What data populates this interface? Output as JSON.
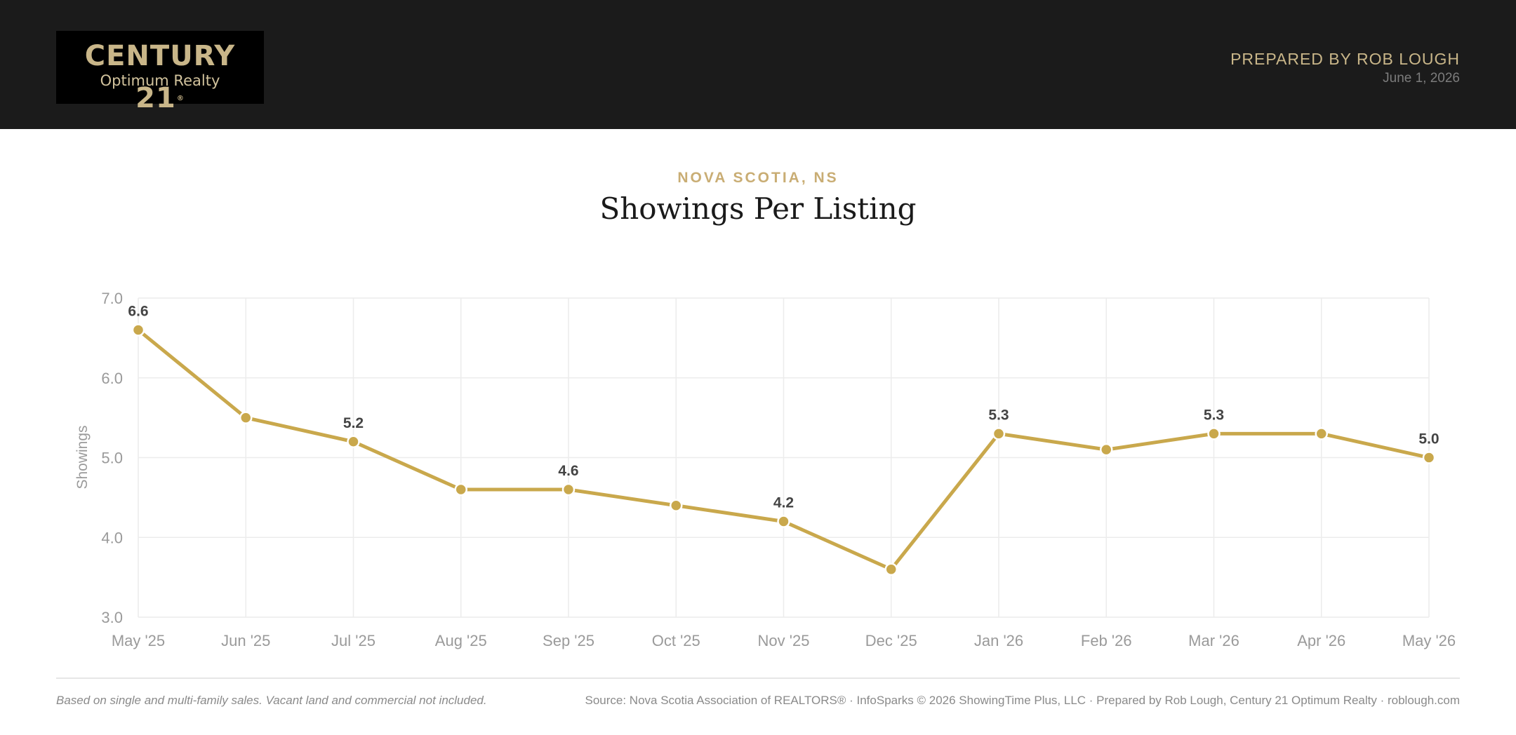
{
  "header": {
    "logo_brand": "CENTURY 21",
    "logo_sub": "Optimum Realty",
    "prepared_by": "PREPARED BY ROB LOUGH",
    "date": "June 1, 2026"
  },
  "region": "NOVA SCOTIA, NS",
  "colors": {
    "line": "#c9a84c",
    "grid": "#ececec",
    "axis_text": "#9a9a9a",
    "label_text": "#444444",
    "header_bg": "#1b1b1b",
    "gold": "#c9b689"
  },
  "chart_data": {
    "type": "line",
    "title": "Showings Per Listing",
    "xlabel": "",
    "ylabel": "Showings",
    "ylim": [
      3.0,
      7.0
    ],
    "yticks": [
      "3.0",
      "4.0",
      "5.0",
      "6.0",
      "7.0"
    ],
    "grid": true,
    "categories": [
      "May '25",
      "Jun '25",
      "Jul '25",
      "Aug '25",
      "Sep '25",
      "Oct '25",
      "Nov '25",
      "Dec '25",
      "Jan '26",
      "Feb '26",
      "Mar '26",
      "Apr '26",
      "May '26"
    ],
    "series": [
      {
        "values": [
          6.6,
          5.5,
          5.2,
          4.6,
          4.6,
          4.4,
          4.2,
          3.6,
          5.3,
          5.1,
          5.3,
          5.3,
          5.0
        ],
        "data_labels": [
          "6.6",
          "",
          "5.2",
          "",
          "4.6",
          "",
          "4.2",
          "",
          "5.3",
          "",
          "5.3",
          "",
          "5.0"
        ]
      }
    ]
  },
  "footer": {
    "note": "Based on single and multi-family sales. Vacant land and commercial not included.",
    "source": "Source: Nova Scotia Association of REALTORS® · InfoSparks © 2026 ShowingTime Plus, LLC · Prepared by Rob Lough, Century 21 Optimum Realty · roblough.com"
  }
}
